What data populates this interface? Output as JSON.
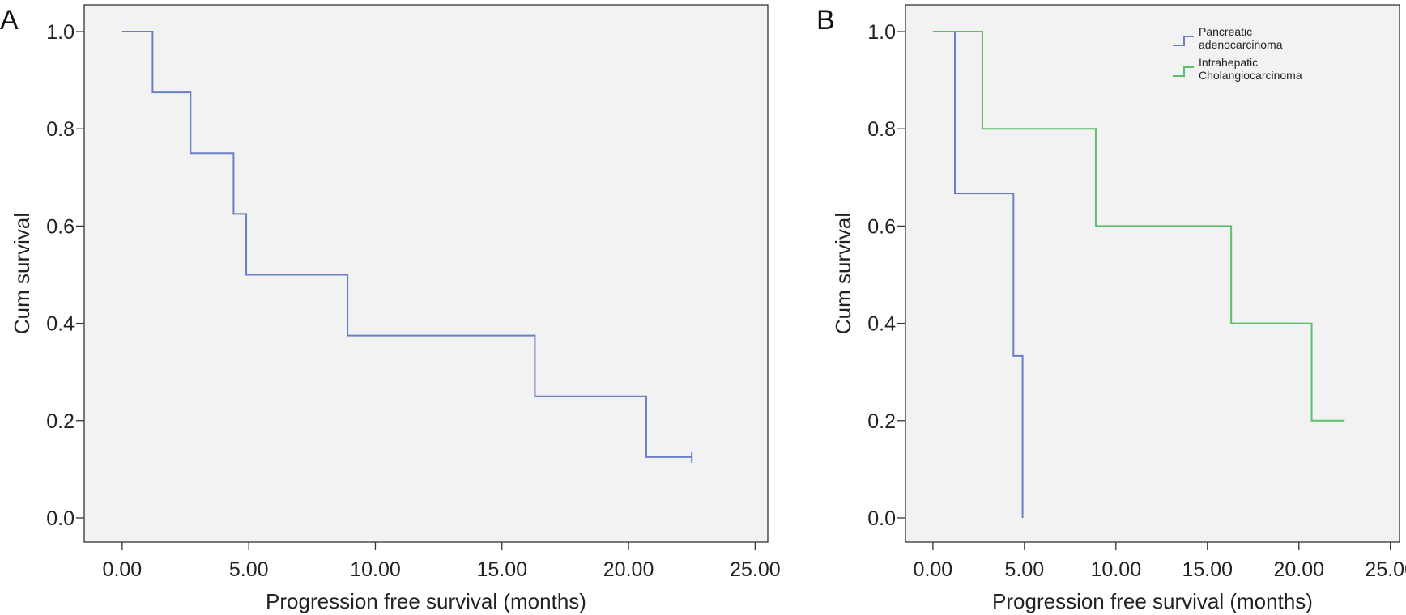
{
  "chart_data": [
    {
      "type": "line",
      "step": true,
      "panel": "A",
      "xlabel": "Progression free survival (months)",
      "ylabel": "Cum survival",
      "xlim": [
        -1.5,
        25.5
      ],
      "ylim": [
        -0.05,
        1.055
      ],
      "xticks": [
        0,
        5,
        10,
        15,
        20,
        25
      ],
      "xtick_labels": [
        "0.00",
        "5.00",
        "10.00",
        "15.00",
        "20.00",
        "25.00"
      ],
      "yticks": [
        0,
        0.2,
        0.4,
        0.6,
        0.8,
        1.0
      ],
      "ytick_labels": [
        "0.0",
        "0.2",
        "0.4",
        "0.6",
        "0.8",
        "1.0"
      ],
      "grid": false,
      "legend": "none",
      "series": [
        {
          "color": "#6b7fc4",
          "x": [
            0,
            1.2,
            2.7,
            4.4,
            4.9,
            8.9,
            16.3,
            20.7,
            22.5
          ],
          "y": [
            1.0,
            0.875,
            0.75,
            0.625,
            0.5,
            0.375,
            0.25,
            0.125,
            0.125
          ],
          "censored_x": [
            22.5
          ],
          "censored_y": [
            0.125
          ]
        }
      ]
    },
    {
      "type": "line",
      "step": true,
      "panel": "B",
      "xlabel": "Progression free survival (months)",
      "ylabel": "Cum survival",
      "xlim": [
        -1.5,
        25.5
      ],
      "ylim": [
        -0.05,
        1.055
      ],
      "xticks": [
        0,
        5,
        10,
        15,
        20,
        25
      ],
      "xtick_labels": [
        "0.00",
        "5.00",
        "10.00",
        "15.00",
        "20.00",
        "25.00"
      ],
      "yticks": [
        0,
        0.2,
        0.4,
        0.6,
        0.8,
        1.0
      ],
      "ytick_labels": [
        "0.0",
        "0.2",
        "0.4",
        "0.6",
        "0.8",
        "1.0"
      ],
      "grid": false,
      "legend": "top-right",
      "series": [
        {
          "name": [
            "Pancreatic",
            "adenocarcinoma"
          ],
          "color": "#6b7fc4",
          "x": [
            0,
            1.2,
            4.4,
            4.9
          ],
          "y": [
            1.0,
            0.667,
            0.333,
            0.0
          ]
        },
        {
          "name": [
            "Intrahepatic",
            "Cholangiocarcinoma"
          ],
          "color": "#5cbf6e",
          "x": [
            0,
            2.7,
            8.9,
            16.3,
            20.7,
            22.5
          ],
          "y": [
            1.0,
            0.8,
            0.6,
            0.4,
            0.2,
            0.2
          ]
        }
      ]
    }
  ]
}
